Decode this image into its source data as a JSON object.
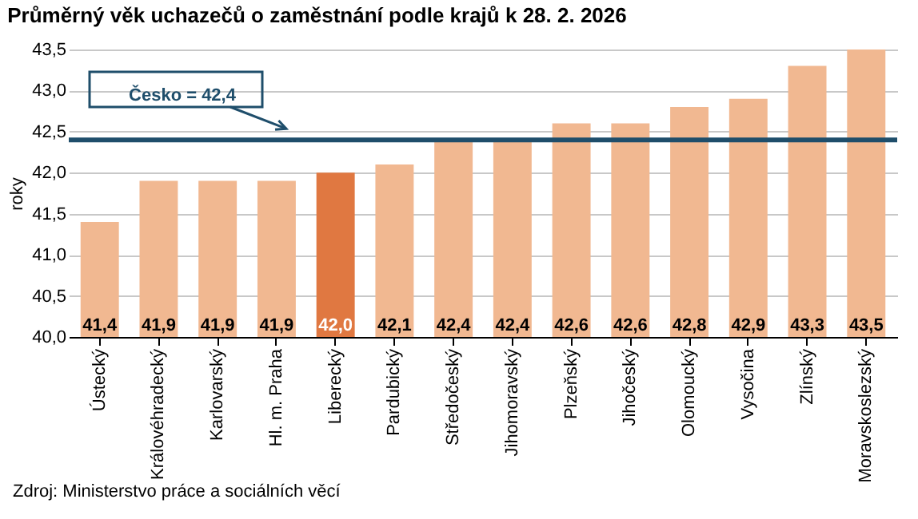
{
  "chart_data": {
    "type": "bar",
    "title": "Průměrný věk uchazečů o zaměstnání podle krajů k 28. 2. 2026",
    "ylabel": "roky",
    "categories": [
      "Ústecký",
      "Královéhradecký",
      "Karlovarský",
      "Hl. m. Praha",
      "Liberecký",
      "Pardubický",
      "Středočeský",
      "Jihomoravský",
      "Plzeňský",
      "Jihočeský",
      "Olomoucký",
      "Vysočina",
      "Zlínský",
      "Moravskoslezský"
    ],
    "values": [
      41.4,
      41.9,
      41.9,
      41.9,
      42.0,
      42.1,
      42.4,
      42.4,
      42.6,
      42.6,
      42.8,
      42.9,
      43.3,
      43.5
    ],
    "value_labels": [
      "41,4",
      "41,9",
      "41,9",
      "41,9",
      "42,0",
      "42,1",
      "42,4",
      "42,4",
      "42,6",
      "42,6",
      "42,8",
      "42,9",
      "43,3",
      "43,5"
    ],
    "colors": [
      "#f1b891",
      "#f1b891",
      "#f1b891",
      "#f1b891",
      "#e07841",
      "#f1b891",
      "#f1b891",
      "#f1b891",
      "#f1b891",
      "#f1b891",
      "#f1b891",
      "#f1b891",
      "#f1b891",
      "#f1b891"
    ],
    "ylim": [
      40.0,
      43.5
    ],
    "yticks": [
      {
        "value": 40.0,
        "label": "40,0"
      },
      {
        "value": 40.5,
        "label": "40,5"
      },
      {
        "value": 41.0,
        "label": "41,0"
      },
      {
        "value": 41.5,
        "label": "41,5"
      },
      {
        "value": 42.0,
        "label": "42,0"
      },
      {
        "value": 42.5,
        "label": "42,5"
      },
      {
        "value": 43.0,
        "label": "43,0"
      },
      {
        "value": 43.5,
        "label": "43,5"
      }
    ],
    "grid": "y",
    "ref_lines": [
      {
        "axis": "y",
        "value": 42.4,
        "label": "Česko = 42,4",
        "color": "#1f4e6b"
      }
    ],
    "annotations": [
      "Zdroj: Ministerstvo práce a sociálních věcí"
    ]
  }
}
